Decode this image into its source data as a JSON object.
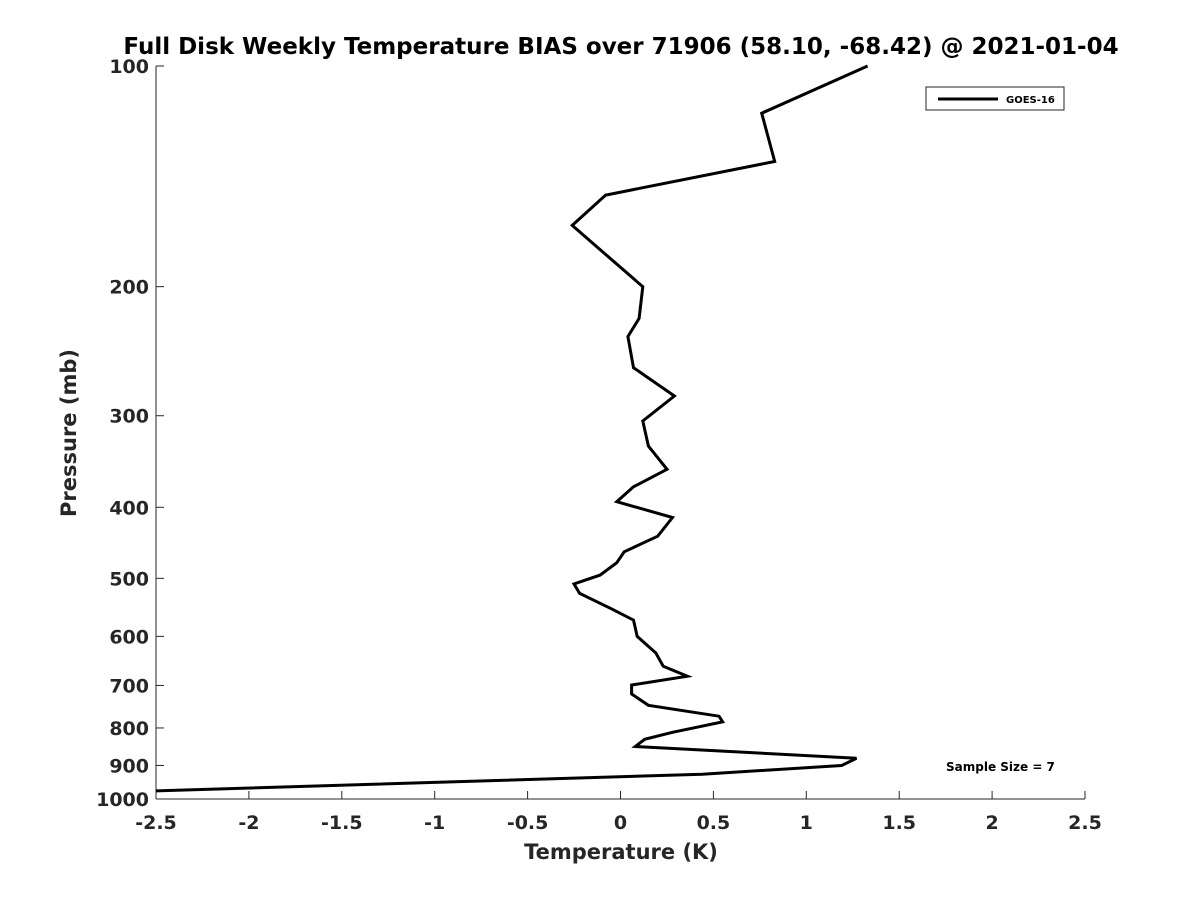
{
  "chart_data": {
    "type": "line",
    "title": "Full Disk Weekly Temperature BIAS over 71906 (58.10, -68.42) @ 2021-01-04",
    "xlabel": "Temperature (K)",
    "ylabel": "Pressure (mb)",
    "xlim": [
      -2.5,
      2.5
    ],
    "ylim": [
      1000,
      100
    ],
    "yscale": "log",
    "y_reversed": true,
    "xticks": [
      -2.5,
      -2,
      -1.5,
      -1,
      -0.5,
      0,
      0.5,
      1,
      1.5,
      2,
      2.5
    ],
    "xtick_labels": [
      "-2.5",
      "-2",
      "-1.5",
      "-1",
      "-0.5",
      "0",
      "0.5",
      "1",
      "1.5",
      "2",
      "2.5"
    ],
    "yticks": [
      100,
      200,
      300,
      400,
      500,
      600,
      700,
      800,
      900,
      1000
    ],
    "ytick_labels": [
      "100",
      "200",
      "300",
      "400",
      "500",
      "600",
      "700",
      "800",
      "900",
      "1000"
    ],
    "grid": false,
    "legend_position": "top-right",
    "series": [
      {
        "name": "GOES-16",
        "color": "#000000",
        "x": [
          1.33,
          0.76,
          0.83,
          -0.08,
          -0.26,
          0.12,
          0.1,
          0.04,
          0.07,
          0.29,
          0.12,
          0.15,
          0.25,
          0.07,
          -0.02,
          0.28,
          0.2,
          0.02,
          -0.02,
          -0.11,
          -0.25,
          -0.22,
          -0.05,
          0.07,
          0.09,
          0.19,
          0.23,
          0.36,
          0.06,
          0.06,
          0.15,
          0.53,
          0.55,
          0.28,
          0.13,
          0.08,
          1.27,
          1.19,
          0.44,
          -2.5
        ],
        "y": [
          100,
          116,
          135,
          150,
          165,
          200,
          221,
          234,
          258,
          282,
          305,
          330,
          355,
          375,
          393,
          413,
          438,
          460,
          476,
          495,
          509,
          524,
          550,
          570,
          600,
          632,
          659,
          680,
          699,
          719,
          745,
          771,
          785,
          811,
          829,
          848,
          880,
          900,
          925,
          975
        ]
      }
    ],
    "annotation": "Sample Size = 7"
  }
}
